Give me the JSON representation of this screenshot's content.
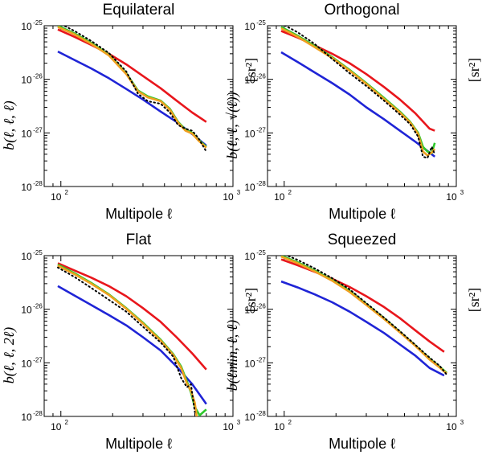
{
  "figure_description_colors": {
    "red": "#e8161c",
    "blue": "#1f24d6",
    "green": "#2ec82b",
    "orange": "#f0a020",
    "black": "#000000"
  },
  "chart_data": [
    {
      "type": "line",
      "title": "Equilateral",
      "xlabel": "Multipole ℓ",
      "ylabel": "b(ℓ, ℓ, ℓ)",
      "yunit": "[sr²]",
      "xscale": "log",
      "yscale": "log",
      "xlim": [
        80,
        1000
      ],
      "ylim": [
        1e-28,
        1e-25
      ],
      "xticks": [
        {
          "base": "10",
          "exp": "2",
          "value": 100
        },
        {
          "base": "10",
          "exp": "3",
          "value": 1000
        }
      ],
      "yticks": [
        {
          "base": "10",
          "exp": "-25",
          "value": 1e-25
        },
        {
          "base": "10",
          "exp": "-26",
          "value": 1e-26
        },
        {
          "base": "10",
          "exp": "-27",
          "value": 1e-27
        },
        {
          "base": "10",
          "exp": "-28",
          "value": 1e-28
        }
      ],
      "series": [
        {
          "name": "red",
          "color": "#e8161c",
          "style": "solid",
          "x": [
            96,
            120,
            150,
            190,
            240,
            300,
            380,
            470,
            580,
            700
          ],
          "y": [
            8.5e-26,
            6.2e-26,
            4.4e-26,
            3e-26,
            1.9e-26,
            1.15e-26,
            6.8e-27,
            4e-27,
            2.4e-27,
            1.6e-27
          ]
        },
        {
          "name": "blue",
          "color": "#1f24d6",
          "style": "solid",
          "x": [
            96,
            120,
            150,
            190,
            240,
            300,
            380,
            470,
            580,
            700
          ],
          "y": [
            3.3e-26,
            2.3e-26,
            1.6e-26,
            1.05e-26,
            6.6e-27,
            4.2e-27,
            2.5e-27,
            1.6e-27,
            9.5e-28,
            5.8e-28
          ]
        },
        {
          "name": "green",
          "color": "#2ec82b",
          "style": "solid",
          "x": [
            96,
            120,
            150,
            190,
            240,
            280,
            320,
            380,
            430,
            480,
            530,
            580,
            630,
            700
          ],
          "y": [
            1e-25,
            7.2e-26,
            4.8e-26,
            2.9e-26,
            1.3e-26,
            6.2e-27,
            4.8e-27,
            4e-27,
            2.8e-27,
            1.6e-27,
            1.15e-27,
            1e-27,
            7.5e-28,
            5.5e-28
          ]
        },
        {
          "name": "orange",
          "color": "#f0a020",
          "style": "solid",
          "x": [
            96,
            120,
            150,
            190,
            240,
            280,
            320,
            380,
            430,
            480,
            530,
            580,
            630,
            700
          ],
          "y": [
            9.5e-26,
            6.9e-26,
            4.6e-26,
            2.8e-26,
            1.25e-26,
            6e-27,
            4.6e-27,
            3.9e-27,
            2.7e-27,
            1.55e-27,
            1.1e-27,
            9.7e-28,
            7.2e-28,
            5.3e-28
          ]
        },
        {
          "name": "black dotted",
          "color": "#000000",
          "style": "dotted",
          "x": [
            96,
            120,
            150,
            190,
            240,
            280,
            320,
            380,
            430,
            480,
            530,
            580,
            630,
            700
          ],
          "y": [
            1.15e-25,
            8e-26,
            5.2e-26,
            3.1e-26,
            1.4e-26,
            5.4e-27,
            3.9e-27,
            3.5e-27,
            2.4e-27,
            1.4e-27,
            1.2e-27,
            1.1e-27,
            8e-28,
            4.5e-28
          ]
        }
      ]
    },
    {
      "type": "line",
      "title": "Orthogonal",
      "xlabel": "Multipole ℓ",
      "ylabel": "b(ℓ, ℓ, √(ℓ))",
      "yunit": "[sr²]",
      "xscale": "log",
      "yscale": "log",
      "xlim": [
        80,
        1000
      ],
      "ylim": [
        1e-28,
        1e-25
      ],
      "xticks": [
        {
          "base": "10",
          "exp": "2",
          "value": 100
        },
        {
          "base": "10",
          "exp": "3",
          "value": 1000
        }
      ],
      "yticks": [
        {
          "base": "10",
          "exp": "-25",
          "value": 1e-25
        },
        {
          "base": "10",
          "exp": "-26",
          "value": 1e-26
        },
        {
          "base": "10",
          "exp": "-27",
          "value": 1e-27
        },
        {
          "base": "10",
          "exp": "-28",
          "value": 1e-28
        }
      ],
      "series": [
        {
          "name": "red",
          "color": "#e8161c",
          "style": "solid",
          "x": [
            96,
            120,
            150,
            190,
            240,
            300,
            380,
            470,
            580,
            700,
            750
          ],
          "y": [
            8e-26,
            6e-26,
            4.3e-26,
            3e-26,
            2e-26,
            1.25e-26,
            7.2e-27,
            4.2e-27,
            2.3e-27,
            1.2e-27,
            1.1e-27
          ]
        },
        {
          "name": "blue",
          "color": "#1f24d6",
          "style": "solid",
          "x": [
            96,
            120,
            150,
            190,
            240,
            300,
            380,
            470,
            580,
            700,
            750
          ],
          "y": [
            3.2e-26,
            2.1e-26,
            1.35e-26,
            8.5e-27,
            5.2e-27,
            3e-27,
            1.8e-27,
            1.1e-27,
            6.8e-28,
            4.3e-28,
            3.6e-28
          ]
        },
        {
          "name": "green",
          "color": "#2ec82b",
          "style": "solid",
          "x": [
            96,
            120,
            150,
            190,
            240,
            300,
            380,
            470,
            540,
            600,
            640,
            680,
            720,
            750
          ],
          "y": [
            9.5e-26,
            6.5e-26,
            4.2e-26,
            2.6e-26,
            1.5e-26,
            8.5e-27,
            4.5e-27,
            2.5e-27,
            1.6e-27,
            1e-27,
            5.5e-28,
            4.5e-28,
            4.2e-28,
            6.5e-28
          ]
        },
        {
          "name": "orange",
          "color": "#f0a020",
          "style": "solid",
          "x": [
            96,
            120,
            150,
            190,
            240,
            300,
            380,
            470,
            540,
            600,
            640,
            680,
            720,
            750
          ],
          "y": [
            9e-26,
            6.2e-26,
            4e-26,
            2.5e-26,
            1.45e-26,
            8.2e-27,
            4.3e-27,
            2.4e-27,
            1.55e-27,
            9.5e-28,
            4.5e-28,
            3.8e-28,
            4.3e-28,
            5e-28
          ]
        },
        {
          "name": "black dotted",
          "color": "#000000",
          "style": "dotted",
          "x": [
            96,
            120,
            150,
            190,
            240,
            300,
            380,
            470,
            540,
            600,
            640,
            680,
            720,
            750
          ],
          "y": [
            1.1e-25,
            7.5e-26,
            4.6e-26,
            2.4e-26,
            1.3e-26,
            7.5e-27,
            4e-27,
            2.2e-27,
            1.45e-27,
            8.5e-28,
            3.6e-28,
            3.4e-28,
            5.5e-28,
            4e-28
          ]
        }
      ]
    },
    {
      "type": "line",
      "title": "Flat",
      "xlabel": "Multipole ℓ",
      "ylabel": "b(ℓ, ℓ, 2ℓ)",
      "yunit": "[sr²]",
      "xscale": "log",
      "yscale": "log",
      "xlim": [
        80,
        1000
      ],
      "ylim": [
        1e-28,
        1e-25
      ],
      "xticks": [
        {
          "base": "10",
          "exp": "2",
          "value": 100
        },
        {
          "base": "10",
          "exp": "3",
          "value": 1000
        }
      ],
      "yticks": [
        {
          "base": "10",
          "exp": "-25",
          "value": 1e-25
        },
        {
          "base": "10",
          "exp": "-26",
          "value": 1e-26
        },
        {
          "base": "10",
          "exp": "-27",
          "value": 1e-27
        },
        {
          "base": "10",
          "exp": "-28",
          "value": 1e-28
        }
      ],
      "series": [
        {
          "name": "red",
          "color": "#e8161c",
          "style": "solid",
          "x": [
            96,
            120,
            150,
            190,
            240,
            300,
            380,
            470,
            580,
            700
          ],
          "y": [
            7.2e-26,
            5.3e-26,
            3.9e-26,
            2.7e-26,
            1.75e-26,
            1.05e-26,
            5.8e-27,
            3e-27,
            1.5e-27,
            7.5e-28
          ]
        },
        {
          "name": "blue",
          "color": "#1f24d6",
          "style": "solid",
          "x": [
            96,
            120,
            150,
            190,
            240,
            300,
            380,
            470,
            580,
            700
          ],
          "y": [
            2.7e-26,
            1.8e-26,
            1.2e-26,
            7.8e-27,
            5e-27,
            3e-27,
            1.7e-27,
            8.5e-28,
            4e-28,
            1.7e-28
          ]
        },
        {
          "name": "green",
          "color": "#2ec82b",
          "style": "solid",
          "x": [
            96,
            120,
            150,
            190,
            240,
            300,
            380,
            450,
            500,
            540,
            570,
            600,
            640,
            700
          ],
          "y": [
            6.8e-26,
            4.7e-26,
            3.1e-26,
            1.9e-26,
            1.05e-26,
            5.6e-27,
            2.7e-27,
            1.45e-27,
            8.5e-28,
            4.5e-28,
            2.8e-28,
            1.5e-28,
            1.05e-28,
            1.35e-28
          ]
        },
        {
          "name": "orange",
          "color": "#f0a020",
          "style": "solid",
          "x": [
            96,
            120,
            150,
            190,
            240,
            300,
            380,
            450,
            500,
            540,
            570,
            600,
            615
          ],
          "y": [
            6.5e-26,
            4.5e-26,
            3e-26,
            1.85e-26,
            1.02e-26,
            5.4e-27,
            2.6e-27,
            1.4e-27,
            8e-28,
            4.1e-28,
            3e-28,
            1.8e-28,
            1e-28
          ]
        },
        {
          "name": "black dotted",
          "color": "#000000",
          "style": "dotted",
          "x": [
            96,
            120,
            150,
            190,
            240,
            300,
            380,
            450,
            500,
            540,
            570,
            600
          ],
          "y": [
            6e-26,
            4e-26,
            2.5e-26,
            1.5e-26,
            9e-27,
            4.7e-27,
            2.4e-27,
            1.3e-27,
            5.2e-28,
            3.5e-28,
            4e-28,
            1.2e-28
          ]
        }
      ]
    },
    {
      "type": "line",
      "title": "Squeezed",
      "xlabel": "Multipole ℓ",
      "ylabel": "b(ℓmin, ℓ, ℓ)",
      "yunit": "[sr²]",
      "xscale": "log",
      "yscale": "log",
      "xlim": [
        80,
        1000
      ],
      "ylim": [
        1e-28,
        1e-25
      ],
      "xticks": [
        {
          "base": "10",
          "exp": "2",
          "value": 100
        },
        {
          "base": "10",
          "exp": "3",
          "value": 1000
        }
      ],
      "yticks": [
        {
          "base": "10",
          "exp": "-25",
          "value": 1e-25
        },
        {
          "base": "10",
          "exp": "-26",
          "value": 1e-26
        },
        {
          "base": "10",
          "exp": "-27",
          "value": 1e-27
        },
        {
          "base": "10",
          "exp": "-28",
          "value": 1e-28
        }
      ],
      "series": [
        {
          "name": "red",
          "color": "#e8161c",
          "style": "solid",
          "x": [
            96,
            120,
            150,
            190,
            240,
            300,
            380,
            470,
            580,
            700,
            850
          ],
          "y": [
            8.5e-26,
            6.6e-26,
            5e-26,
            3.7e-26,
            2.6e-26,
            1.75e-26,
            1.1e-26,
            6.8e-27,
            4e-27,
            2.5e-27,
            1.6e-27
          ]
        },
        {
          "name": "blue",
          "color": "#1f24d6",
          "style": "solid",
          "x": [
            96,
            120,
            150,
            190,
            240,
            300,
            380,
            470,
            580,
            700,
            850
          ],
          "y": [
            3.3e-26,
            2.55e-26,
            1.9e-26,
            1.35e-26,
            9e-27,
            5.8e-27,
            3.6e-27,
            2.2e-27,
            1.35e-27,
            8e-28,
            5.8e-28
          ]
        },
        {
          "name": "green",
          "color": "#2ec82b",
          "style": "solid",
          "x": [
            96,
            120,
            150,
            190,
            240,
            300,
            380,
            470,
            580,
            700,
            800,
            880
          ],
          "y": [
            1e-25,
            7.5e-26,
            5.3e-26,
            3.5e-26,
            2.2e-26,
            1.25e-26,
            6.8e-27,
            3.8e-27,
            2.1e-27,
            1.2e-27,
            8.5e-28,
            6.5e-28
          ]
        },
        {
          "name": "orange",
          "color": "#f0a020",
          "style": "solid",
          "x": [
            96,
            120,
            150,
            190,
            240,
            300,
            380,
            470,
            580,
            700,
            800,
            880
          ],
          "y": [
            9.6e-26,
            7.2e-26,
            5.1e-26,
            3.4e-26,
            2.1e-26,
            1.2e-26,
            6.6e-27,
            3.7e-27,
            2.05e-27,
            1.15e-27,
            8.2e-28,
            6.3e-28
          ]
        },
        {
          "name": "black dotted",
          "color": "#000000",
          "style": "dotted",
          "x": [
            96,
            120,
            150,
            190,
            240,
            300,
            380,
            470,
            580,
            700,
            800,
            880
          ],
          "y": [
            1.12e-25,
            8.3e-26,
            5.8e-26,
            3.8e-26,
            2.35e-26,
            1.3e-26,
            7e-27,
            3.9e-27,
            2.15e-27,
            1.25e-27,
            8.8e-28,
            6e-28
          ]
        }
      ]
    }
  ]
}
